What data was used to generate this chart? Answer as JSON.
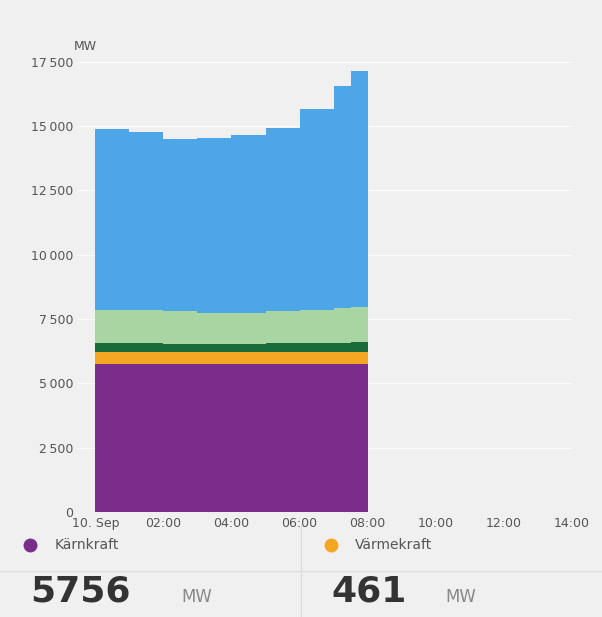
{
  "background_color": "#f0f0f0",
  "chart_bg": "#f0f0f0",
  "panel_bg": "#ffffff",
  "ylabel": "MW",
  "ylim": [
    0,
    17500
  ],
  "yticks": [
    0,
    2500,
    5000,
    7500,
    10000,
    12500,
    15000,
    17500
  ],
  "xlabel_ticks": [
    "10. Sep",
    "02:00",
    "04:00",
    "06:00",
    "08:00",
    "10:00",
    "12:00",
    "14:00"
  ],
  "colors": {
    "karnkraft": "#7b2d8b",
    "varmekraft": "#f5a623",
    "dark_green": "#1a6b3a",
    "light_green": "#a8d5a2",
    "wind": "#4da6e8"
  },
  "legend_items": [
    {
      "label": "Kärnkraft",
      "color": "#7b2d8b",
      "value": "5756",
      "unit": "MW"
    },
    {
      "label": "Värmekraft",
      "color": "#f5a623",
      "value": "461",
      "unit": "MW"
    }
  ],
  "time_hours": [
    0,
    1,
    2,
    3,
    4,
    5,
    6,
    7,
    7.5,
    8
  ],
  "karnkraft": [
    5756,
    5756,
    5756,
    5756,
    5756,
    5756,
    5756,
    5756,
    5756,
    5756
  ],
  "varmekraft": [
    461,
    461,
    461,
    461,
    461,
    461,
    461,
    461,
    461,
    461
  ],
  "dark_green": [
    350,
    350,
    330,
    320,
    330,
    340,
    350,
    370,
    390,
    400
  ],
  "light_green": [
    1300,
    1300,
    1250,
    1200,
    1200,
    1250,
    1300,
    1350,
    1350,
    1280
  ],
  "wind": [
    7000,
    6900,
    6700,
    6800,
    6900,
    7100,
    7800,
    8600,
    9200,
    9600
  ]
}
